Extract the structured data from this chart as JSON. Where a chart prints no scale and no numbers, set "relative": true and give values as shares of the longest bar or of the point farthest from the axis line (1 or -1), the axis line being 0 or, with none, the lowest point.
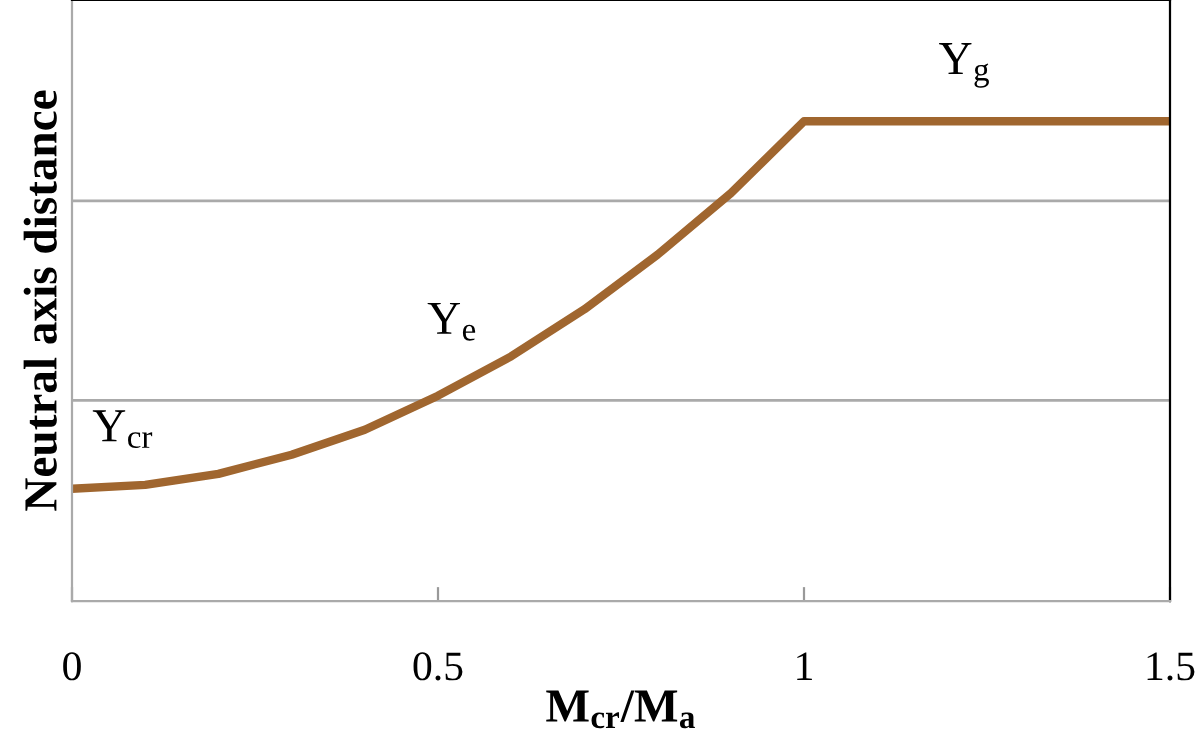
{
  "chart_data": {
    "type": "line",
    "relative": true,
    "xlabel": "M$_{cr}$/M$_{a}$",
    "ylabel": "Neutral axis distance",
    "x": [
      0,
      0.1,
      0.2,
      0.3,
      0.4,
      0.5,
      0.6,
      0.7,
      0.8,
      0.9,
      1.0,
      1.5
    ],
    "series": [
      {
        "color": "#a0662f",
        "values": [
          0.234,
          0.242,
          0.265,
          0.305,
          0.357,
          0.428,
          0.51,
          0.608,
          0.722,
          0.85,
          1,
          1
        ]
      }
    ],
    "xlim": [
      0,
      1.5
    ],
    "xticks": [
      0,
      0.5,
      1,
      1.5
    ],
    "tick_labels": "x",
    "marker": "none",
    "line_style": "solid",
    "ref_lines": [
      {
        "axis": "y",
        "value": 0.418,
        "color": "#aaaaaa"
      },
      {
        "axis": "y",
        "value": 0.834,
        "color": "#aaaaaa"
      }
    ],
    "annotations": [
      {
        "text": "Y$_{cr}$",
        "x": 0.1,
        "y": 0.242
      },
      {
        "text": "Y$_{e}$",
        "x": 0.55,
        "y": 0.466
      },
      {
        "text": "Y$_{g}$",
        "x": 1.25,
        "y": 1
      }
    ]
  }
}
